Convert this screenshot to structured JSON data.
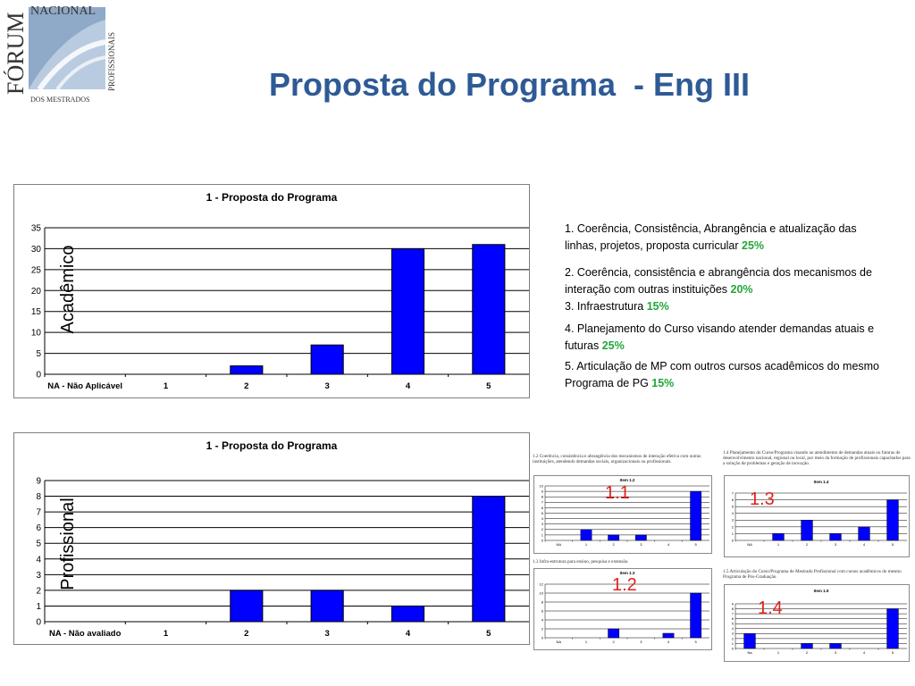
{
  "slide": {
    "title": "Proposta do Programa  - Eng III"
  },
  "logo": {
    "line1": "NACIONAL",
    "line2": "FÓRUM",
    "line3": "PROFISSIONAIS",
    "line4": "DOS MESTRADOS"
  },
  "side_labels": {
    "academico": "Acadêmico",
    "profissional": "Profissional"
  },
  "criteria": [
    {
      "text": "1. Coerência, Consistência, Abrangência e atualização das linhas, projetos, proposta curricular  ",
      "pct": "25%"
    },
    {
      "text": "2. Coerência, consistência e abrangência dos mecanismos de interação com outras instituições ",
      "pct": "20%"
    },
    {
      "text": "3. Infraestrutura ",
      "pct": "15%"
    },
    {
      "text": "4. Planejamento do Curso visando atender demandas atuais e futuras ",
      "pct": "25%"
    },
    {
      "text": "5. Articulação de MP com outros cursos acadêmicos do mesmo Programa de PG ",
      "pct": "15%"
    }
  ],
  "mini_labels": {
    "m11": "1.1",
    "m12": "1.2",
    "m13": "1.3",
    "m14": "1.4"
  },
  "mini_captions": {
    "m11": "1.2 Coerência, consistência e abrangência dos mecanismos de interação efetiva com outras instituições, atendendo demandas sociais, organizacionais ou profissionais.",
    "m12": "1.3 Infra-estrutura para ensino, pesquisa e extensão.",
    "m13": "1.4 Planejamento do Curso/Programa visando ao atendimento de demandas atuais ou futuras de desenvolvimento nacional, regional ou local, por meio da formação de profissionais capacitados para a solução de problemas e geração de inovação.",
    "m14": "1.5 Articulação do Curso/Programa de Mestrado Profissional com cursos acadêmicos do mesmo Programa de Pós-Graduação."
  },
  "colors": {
    "title": "#2e5a95",
    "bar": "#0000ff",
    "percent": "#22a63a",
    "mini_label": "#e0221c"
  },
  "chart_data": [
    {
      "id": "academico",
      "type": "bar",
      "title": "1 - Proposta do Programa",
      "categories": [
        "NA - Não Aplicável",
        "1",
        "2",
        "3",
        "4",
        "5"
      ],
      "values": [
        0,
        0,
        2,
        7,
        30,
        31
      ],
      "ylim": [
        0,
        35
      ],
      "yticks": [
        0,
        5,
        10,
        15,
        20,
        25,
        30,
        35
      ],
      "grid": true,
      "xlabel": "",
      "ylabel": ""
    },
    {
      "id": "profissional",
      "type": "bar",
      "title": "1 - Proposta do Programa",
      "categories": [
        "NA - Não avaliado",
        "1",
        "2",
        "3",
        "4",
        "5"
      ],
      "values": [
        0,
        0,
        2,
        2,
        1,
        8
      ],
      "ylim": [
        0,
        9
      ],
      "yticks": [
        0,
        1,
        2,
        3,
        4,
        5,
        6,
        7,
        8,
        9
      ],
      "grid": true,
      "xlabel": "",
      "ylabel": ""
    },
    {
      "id": "m11",
      "type": "bar",
      "title": "Item 1.2",
      "categories": [
        "NA",
        "1",
        "2",
        "3",
        "4",
        "5"
      ],
      "values": [
        0,
        2,
        1,
        1,
        0,
        9
      ],
      "ylim": [
        0,
        10
      ],
      "yticks": [
        0,
        1,
        2,
        3,
        4,
        5,
        6,
        7,
        8,
        9,
        10
      ],
      "grid": true
    },
    {
      "id": "m12",
      "type": "bar",
      "title": "Item 1.3",
      "categories": [
        "NA",
        "1",
        "2",
        "3",
        "4",
        "5"
      ],
      "values": [
        0,
        0,
        2,
        0,
        1,
        10
      ],
      "ylim": [
        0,
        12
      ],
      "yticks": [
        0,
        2,
        4,
        6,
        8,
        10,
        12
      ],
      "grid": true
    },
    {
      "id": "m13",
      "type": "bar",
      "title": "Item 1.4",
      "categories": [
        "NA",
        "1",
        "2",
        "3",
        "4",
        "5"
      ],
      "values": [
        0,
        1,
        3,
        1,
        2,
        6
      ],
      "ylim": [
        0,
        7
      ],
      "yticks": [
        0,
        1,
        2,
        3,
        4,
        5,
        6,
        7
      ],
      "grid": true
    },
    {
      "id": "m14",
      "type": "bar",
      "title": "Item 1.5",
      "categories": [
        "Na",
        "1",
        "2",
        "3",
        "4",
        "5"
      ],
      "values": [
        3,
        0,
        1,
        1,
        0,
        8
      ],
      "ylim": [
        0,
        9
      ],
      "yticks": [
        0,
        1,
        2,
        3,
        4,
        5,
        6,
        7,
        8,
        9
      ],
      "grid": true
    }
  ]
}
